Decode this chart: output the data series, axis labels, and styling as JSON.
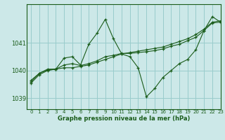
{
  "background_color": "#cce8e8",
  "grid_color": "#99cccc",
  "line_color": "#1a5c1a",
  "text_color": "#1a5c1a",
  "xlabel": "Graphe pression niveau de la mer (hPa)",
  "xlim": [
    -0.5,
    23
  ],
  "ylim": [
    1038.6,
    1042.4
  ],
  "yticks": [
    1039,
    1040,
    1041
  ],
  "xticks": [
    0,
    1,
    2,
    3,
    4,
    5,
    6,
    7,
    8,
    9,
    10,
    11,
    12,
    13,
    14,
    15,
    16,
    17,
    18,
    19,
    20,
    21,
    22,
    23
  ],
  "series": [
    [
      1039.55,
      1039.85,
      1040.0,
      1040.05,
      1040.45,
      1040.5,
      1040.2,
      1040.95,
      1041.35,
      1041.85,
      1041.15,
      1040.6,
      1040.5,
      1040.1,
      1039.05,
      1039.35,
      1039.75,
      1040.0,
      1040.25,
      1040.4,
      1040.75,
      1041.45,
      1041.95,
      1041.75
    ],
    [
      1039.65,
      1039.9,
      1040.05,
      1040.05,
      1040.1,
      1040.1,
      1040.15,
      1040.2,
      1040.3,
      1040.4,
      1040.5,
      1040.6,
      1040.65,
      1040.7,
      1040.75,
      1040.8,
      1040.85,
      1040.95,
      1041.05,
      1041.15,
      1041.3,
      1041.5,
      1041.75,
      1041.8
    ],
    [
      1039.6,
      1039.9,
      1040.02,
      1040.05,
      1040.2,
      1040.25,
      1040.18,
      1040.25,
      1040.35,
      1040.5,
      1040.55,
      1040.62,
      1040.62,
      1040.65,
      1040.68,
      1040.72,
      1040.78,
      1040.88,
      1040.95,
      1041.08,
      1041.2,
      1041.45,
      1041.72,
      1041.75
    ]
  ]
}
